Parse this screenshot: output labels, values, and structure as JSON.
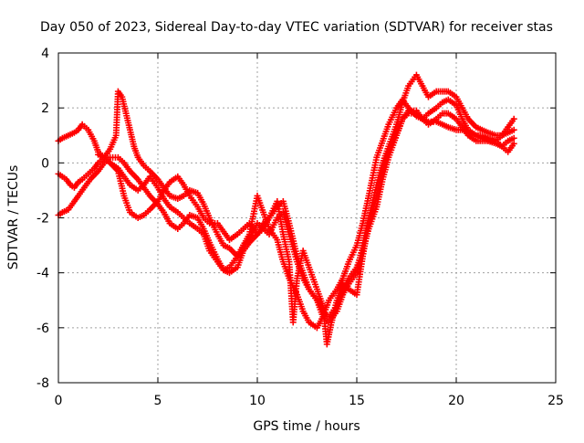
{
  "chart_data": {
    "type": "scatter",
    "title": "Day 050 of 2023, Sidereal Day-to-day VTEC variation (SDTVAR) for receiver stas",
    "xlabel": "GPS time / hours",
    "ylabel": "SDTVAR / TECUs",
    "xlim": [
      0,
      25
    ],
    "ylim": [
      -8,
      4
    ],
    "xticks": [
      0,
      5,
      10,
      15,
      20,
      25
    ],
    "yticks": [
      -8,
      -6,
      -4,
      -2,
      0,
      2,
      4
    ],
    "grid": true,
    "legend": "none",
    "marker": "+",
    "color": "#ff0000",
    "series": [
      {
        "x": [
          0.0,
          0.2,
          0.4,
          0.6,
          0.8,
          1.0,
          1.2,
          1.5,
          1.8,
          2.0,
          2.3,
          2.6,
          2.9,
          3.0,
          3.2,
          3.4,
          3.6,
          3.8,
          4.0,
          4.3,
          4.6,
          5.0,
          5.3,
          5.6,
          6.0,
          6.3,
          6.6,
          7.0,
          7.3,
          7.6,
          8.0,
          8.3,
          8.6,
          9.0,
          9.3,
          9.6,
          10.0,
          10.3,
          10.6,
          11.0,
          11.3,
          11.6,
          12.0,
          12.3,
          12.6,
          13.0,
          13.3,
          13.6,
          14.0,
          14.3,
          14.6,
          15.0,
          15.3,
          15.6,
          16.0,
          16.3,
          16.6,
          17.0,
          17.3,
          17.6,
          18.0,
          18.3,
          18.6,
          19.0,
          19.3,
          19.6,
          20.0,
          20.3,
          20.6,
          21.0,
          21.3,
          21.6,
          22.0,
          22.3,
          22.6,
          22.9
        ],
        "y": [
          -0.4,
          -0.5,
          -0.6,
          -0.8,
          -0.9,
          -0.7,
          -0.6,
          -0.4,
          -0.2,
          0.0,
          0.2,
          0.5,
          1.0,
          2.6,
          2.4,
          1.8,
          1.2,
          0.6,
          0.2,
          -0.1,
          -0.3,
          -0.6,
          -0.9,
          -1.2,
          -1.3,
          -1.2,
          -1.0,
          -1.1,
          -1.5,
          -2.0,
          -2.6,
          -3.0,
          -3.1,
          -3.4,
          -3.0,
          -2.8,
          -2.2,
          -2.4,
          -2.6,
          -2.0,
          -1.8,
          -2.6,
          -3.6,
          -4.2,
          -4.6,
          -5.0,
          -5.6,
          -5.8,
          -5.4,
          -4.8,
          -4.4,
          -4.0,
          -3.0,
          -2.0,
          -0.8,
          0.0,
          0.6,
          1.4,
          2.2,
          2.8,
          3.2,
          2.8,
          2.4,
          2.6,
          2.6,
          2.6,
          2.4,
          2.0,
          1.6,
          1.3,
          1.2,
          1.1,
          1.0,
          1.0,
          1.1,
          1.2
        ]
      },
      {
        "x": [
          0.0,
          0.2,
          0.5,
          0.8,
          1.0,
          1.2,
          1.5,
          1.8,
          2.0,
          2.3,
          2.6,
          3.0,
          3.3,
          3.6,
          4.0,
          4.3,
          4.6,
          5.0,
          5.3,
          5.6,
          6.0,
          6.3,
          6.6,
          7.0,
          7.3,
          7.6,
          8.0,
          8.3,
          8.6,
          9.0,
          9.3,
          9.6,
          10.0,
          10.3,
          10.6,
          11.0,
          11.3,
          11.6,
          12.0,
          12.3,
          12.6,
          13.0,
          13.3,
          13.6,
          14.0,
          14.3,
          14.6,
          15.0,
          15.3,
          15.6,
          16.0,
          16.3,
          16.6,
          17.0,
          17.3,
          17.6,
          18.0,
          18.3,
          18.6,
          19.0,
          19.3,
          19.6,
          20.0,
          20.3,
          20.6,
          21.0,
          21.3,
          21.6,
          22.0,
          22.3,
          22.6,
          22.9
        ],
        "y": [
          0.8,
          0.9,
          1.0,
          1.1,
          1.2,
          1.4,
          1.2,
          0.8,
          0.4,
          0.2,
          0.0,
          -0.2,
          -0.5,
          -0.8,
          -1.0,
          -0.8,
          -0.5,
          -0.9,
          -1.3,
          -1.6,
          -1.8,
          -2.0,
          -2.2,
          -2.4,
          -2.6,
          -3.2,
          -3.6,
          -3.9,
          -3.8,
          -3.4,
          -3.0,
          -2.6,
          -1.2,
          -1.8,
          -2.4,
          -2.8,
          -3.6,
          -4.2,
          -4.8,
          -5.4,
          -5.8,
          -6.0,
          -5.6,
          -5.0,
          -4.6,
          -4.2,
          -3.6,
          -3.0,
          -2.2,
          -1.2,
          0.2,
          0.8,
          1.4,
          2.0,
          2.3,
          2.0,
          1.7,
          1.6,
          1.8,
          2.0,
          2.2,
          2.3,
          2.1,
          1.6,
          1.2,
          1.0,
          0.9,
          0.8,
          0.8,
          1.0,
          1.3,
          1.6
        ]
      },
      {
        "x": [
          0.0,
          0.2,
          0.5,
          0.8,
          1.0,
          1.3,
          1.6,
          2.0,
          2.3,
          2.6,
          3.0,
          3.3,
          3.6,
          4.0,
          4.3,
          4.6,
          5.0,
          5.3,
          5.6,
          6.0,
          6.3,
          6.6,
          7.0,
          7.3,
          7.6,
          8.0,
          8.3,
          8.6,
          9.0,
          9.3,
          9.6,
          10.0,
          10.3,
          10.6,
          11.0,
          11.3,
          11.6,
          12.0,
          12.3,
          12.6,
          13.0,
          13.3,
          13.6,
          14.0,
          14.3,
          14.6,
          15.0,
          15.3,
          15.6,
          16.0,
          16.3,
          16.6,
          17.0,
          17.3,
          17.6,
          18.0,
          18.3,
          18.6,
          19.0,
          19.3,
          19.6,
          20.0,
          20.3,
          20.6,
          21.0,
          21.3,
          21.6,
          22.0,
          22.3,
          22.6,
          22.9
        ],
        "y": [
          -1.9,
          -1.8,
          -1.7,
          -1.4,
          -1.2,
          -0.9,
          -0.6,
          -0.3,
          0.0,
          0.2,
          0.2,
          0.0,
          -0.3,
          -0.6,
          -0.9,
          -1.2,
          -1.5,
          -1.8,
          -2.2,
          -2.4,
          -2.2,
          -1.9,
          -2.0,
          -2.4,
          -2.9,
          -3.5,
          -3.9,
          -4.0,
          -3.8,
          -3.2,
          -2.9,
          -2.6,
          -2.2,
          -2.0,
          -1.6,
          -1.4,
          -2.2,
          -3.4,
          -4.0,
          -4.6,
          -5.0,
          -5.4,
          -5.6,
          -5.2,
          -4.6,
          -4.2,
          -3.8,
          -3.2,
          -2.4,
          -1.6,
          -0.6,
          0.2,
          1.0,
          1.6,
          1.9,
          1.9,
          1.6,
          1.4,
          1.6,
          1.8,
          1.8,
          1.6,
          1.3,
          1.0,
          0.8,
          0.8,
          0.8,
          0.7,
          0.6,
          0.8,
          0.9
        ]
      },
      {
        "x": [
          2.0,
          2.3,
          2.6,
          3.0,
          3.3,
          3.6,
          4.0,
          4.3,
          4.6,
          5.0,
          5.3,
          5.6,
          6.0,
          6.3,
          6.6,
          7.0,
          7.3,
          7.6,
          8.0,
          8.3,
          8.6,
          9.0,
          9.3,
          9.6,
          10.0,
          10.3,
          10.6,
          11.0,
          11.3,
          11.6,
          11.8,
          12.0,
          12.3,
          12.6,
          13.0,
          13.3,
          13.5,
          13.7,
          14.0,
          14.3,
          14.6,
          15.0,
          15.3,
          15.6,
          16.0,
          16.3,
          16.6,
          17.0,
          17.3,
          17.6,
          18.0,
          18.3,
          18.6,
          19.0,
          19.3,
          19.6,
          20.0,
          20.3,
          20.6,
          21.0,
          21.3,
          21.6,
          22.0,
          22.3,
          22.6,
          22.9
        ],
        "y": [
          0.3,
          0.2,
          0.0,
          -0.3,
          -1.2,
          -1.8,
          -2.0,
          -1.9,
          -1.7,
          -1.4,
          -1.0,
          -0.7,
          -0.5,
          -0.8,
          -1.2,
          -1.6,
          -2.0,
          -2.2,
          -2.2,
          -2.5,
          -2.8,
          -2.6,
          -2.4,
          -2.2,
          -2.6,
          -2.4,
          -2.0,
          -1.4,
          -2.6,
          -3.6,
          -5.8,
          -4.2,
          -3.2,
          -3.8,
          -4.6,
          -5.2,
          -6.6,
          -5.9,
          -5.0,
          -4.4,
          -4.6,
          -4.8,
          -3.4,
          -2.2,
          -1.2,
          -0.2,
          0.4,
          1.0,
          1.6,
          1.8,
          1.8,
          1.6,
          1.5,
          1.5,
          1.4,
          1.3,
          1.2,
          1.2,
          1.1,
          1.0,
          1.0,
          0.9,
          0.8,
          0.6,
          0.4,
          0.7
        ]
      }
    ]
  }
}
